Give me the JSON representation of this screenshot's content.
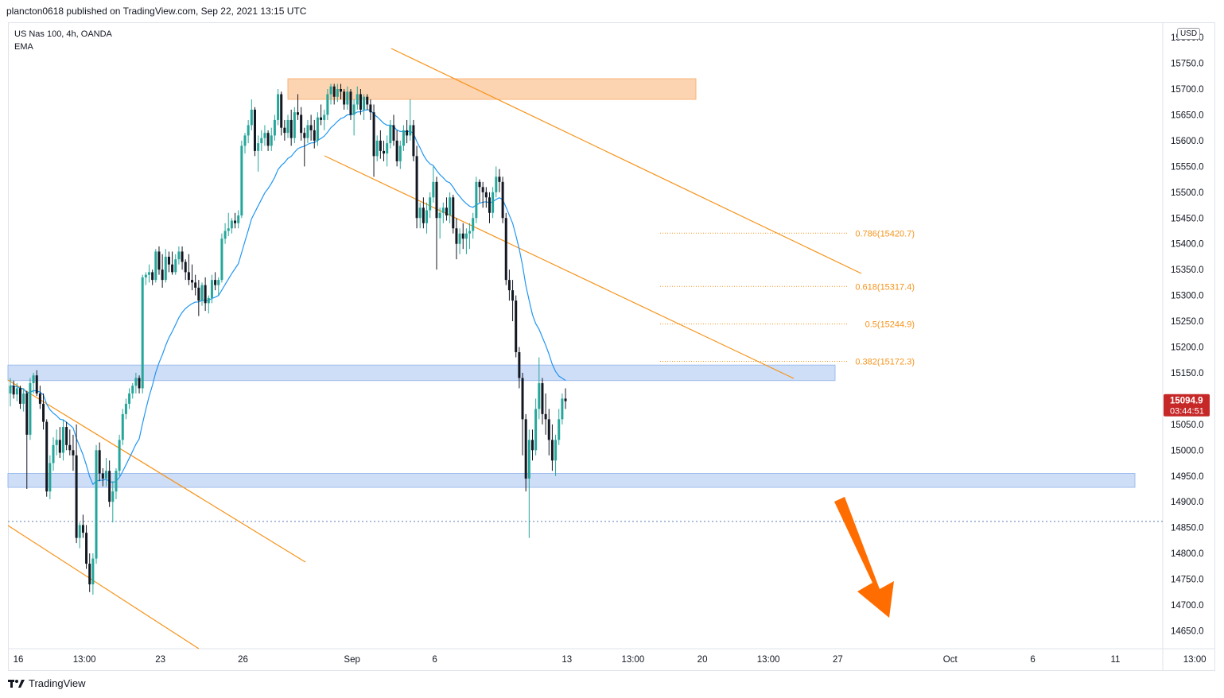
{
  "header": {
    "published_by": "plancton0618 published on TradingView.com, Sep 22, 2021 13:15 UTC"
  },
  "symbol": {
    "name": "US Nas 100, 4h, OANDA",
    "indicator": "EMA"
  },
  "currency_badge": "USD",
  "footer": {
    "logo_text": "TradingView",
    "logo_icon": "tradingview-logo-icon"
  },
  "price_tag": {
    "price": "15094.9",
    "countdown": "03:44:51",
    "color": "#c62828"
  },
  "colors": {
    "up": "#26a69a",
    "down": "#131722",
    "wick": "#131722",
    "ema": "#2196f3",
    "channel": "#f7931a",
    "supply_zone": "#fbcda3",
    "demand_zone": "#c5d8f6"
  },
  "chart_data": {
    "type": "candlestick",
    "symbol": "US Nas 100, 4h, OANDA",
    "y_range": [
      14600,
      15800
    ],
    "y_ticks": [
      14650,
      14700,
      14750,
      14800,
      14850,
      14900,
      14950,
      15000,
      15050,
      15100,
      15150,
      15200,
      15250,
      15300,
      15350,
      15400,
      15450,
      15500,
      15550,
      15600,
      15650,
      15700,
      15750
    ],
    "y_tick_labels": [
      "14650.0",
      "14700.0",
      "14750.0",
      "14800.0",
      "14850.0",
      "14900.0",
      "14950.0",
      "15000.0",
      "15050.0",
      "15100.0",
      "15150.0",
      "15200.0",
      "15250.0",
      "15300.0",
      "15350.0",
      "15400.0",
      "15450.0",
      "15500.0",
      "15550.0",
      "15600.0",
      "15650.0",
      "15700.0",
      "15750.0"
    ],
    "top_tick_label": "15800.0",
    "x_ticks": [
      "16",
      "13:00",
      "23",
      "26",
      "Sep",
      "6",
      "13",
      "13:00",
      "20",
      "13:00",
      "27",
      "Oct",
      "6",
      "11",
      "13:00"
    ],
    "x_tick_index": [
      0,
      20,
      43,
      68,
      101,
      126,
      166,
      186,
      207,
      227,
      248,
      282,
      307,
      332,
      356
    ],
    "last_price": 15094.9,
    "countdown": "03:44:51",
    "candles": [
      [
        15110,
        15140,
        15085,
        15125
      ],
      [
        15125,
        15135,
        15100,
        15108
      ],
      [
        15108,
        15130,
        15095,
        15120
      ],
      [
        15120,
        15125,
        15080,
        15090
      ],
      [
        15090,
        15120,
        15075,
        15110
      ],
      [
        15110,
        15115,
        14925,
        15030
      ],
      [
        15030,
        15140,
        15020,
        15130
      ],
      [
        15130,
        15150,
        15110,
        15145
      ],
      [
        15145,
        15155,
        15105,
        15110
      ],
      [
        15110,
        15125,
        15080,
        15090
      ],
      [
        15090,
        15110,
        15040,
        15055
      ],
      [
        15055,
        15060,
        14910,
        14920
      ],
      [
        14920,
        14990,
        14905,
        14975
      ],
      [
        14975,
        15025,
        14960,
        15010
      ],
      [
        15010,
        15040,
        14990,
        15020
      ],
      [
        15020,
        15045,
        14985,
        14995
      ],
      [
        14995,
        15060,
        14980,
        15045
      ],
      [
        15045,
        15055,
        15000,
        15010
      ],
      [
        15010,
        15040,
        14990,
        15000
      ],
      [
        15000,
        15030,
        14960,
        14990
      ],
      [
        14990,
        15050,
        14820,
        14830
      ],
      [
        14830,
        14860,
        14810,
        14855
      ],
      [
        14855,
        14875,
        14830,
        14840
      ],
      [
        14840,
        14855,
        14770,
        14780
      ],
      [
        14780,
        14800,
        14725,
        14740
      ],
      [
        14740,
        14800,
        14720,
        14790
      ],
      [
        14790,
        15010,
        14780,
        15000
      ],
      [
        15000,
        15015,
        14940,
        14955
      ],
      [
        14955,
        14965,
        14930,
        14945
      ],
      [
        14945,
        14985,
        14930,
        14960
      ],
      [
        14960,
        14980,
        14890,
        14900
      ],
      [
        14900,
        14940,
        14860,
        14920
      ],
      [
        14920,
        14965,
        14905,
        14960
      ],
      [
        14960,
        15030,
        14950,
        15020
      ],
      [
        15020,
        15080,
        15010,
        15070
      ],
      [
        15070,
        15100,
        15060,
        15090
      ],
      [
        15090,
        15120,
        15080,
        15110
      ],
      [
        15110,
        15130,
        15100,
        15125
      ],
      [
        15125,
        15150,
        15110,
        15140
      ],
      [
        15140,
        15145,
        15110,
        15120
      ],
      [
        15120,
        15340,
        15110,
        15335
      ],
      [
        15335,
        15345,
        15320,
        15340
      ],
      [
        15340,
        15360,
        15325,
        15345
      ],
      [
        15345,
        15350,
        15320,
        15330
      ],
      [
        15330,
        15390,
        15325,
        15385
      ],
      [
        15385,
        15395,
        15340,
        15350
      ],
      [
        15350,
        15380,
        15315,
        15330
      ],
      [
        15330,
        15390,
        15325,
        15375
      ],
      [
        15375,
        15385,
        15345,
        15360
      ],
      [
        15360,
        15385,
        15340,
        15345
      ],
      [
        15345,
        15380,
        15340,
        15370
      ],
      [
        15370,
        15395,
        15360,
        15385
      ],
      [
        15385,
        15395,
        15350,
        15365
      ],
      [
        15365,
        15370,
        15330,
        15345
      ],
      [
        15345,
        15380,
        15320,
        15330
      ],
      [
        15330,
        15360,
        15310,
        15325
      ],
      [
        15325,
        15340,
        15300,
        15315
      ],
      [
        15315,
        15330,
        15260,
        15290
      ],
      [
        15290,
        15325,
        15280,
        15320
      ],
      [
        15320,
        15335,
        15270,
        15285
      ],
      [
        15285,
        15300,
        15265,
        15295
      ],
      [
        15295,
        15340,
        15285,
        15330
      ],
      [
        15330,
        15345,
        15310,
        15320
      ],
      [
        15320,
        15335,
        15300,
        15330
      ],
      [
        15330,
        15420,
        15325,
        15410
      ],
      [
        15410,
        15440,
        15400,
        15425
      ],
      [
        15425,
        15460,
        15415,
        15430
      ],
      [
        15430,
        15450,
        15420,
        15445
      ],
      [
        15445,
        15460,
        15430,
        15440
      ],
      [
        15440,
        15465,
        15430,
        15455
      ],
      [
        15455,
        15600,
        15450,
        15590
      ],
      [
        15590,
        15615,
        15575,
        15610
      ],
      [
        15610,
        15640,
        15595,
        15630
      ],
      [
        15630,
        15680,
        15620,
        15660
      ],
      [
        15660,
        15665,
        15570,
        15580
      ],
      [
        15580,
        15610,
        15540,
        15595
      ],
      [
        15595,
        15620,
        15580,
        15605
      ],
      [
        15605,
        15630,
        15590,
        15615
      ],
      [
        15615,
        15620,
        15580,
        15590
      ],
      [
        15590,
        15625,
        15580,
        15610
      ],
      [
        15610,
        15650,
        15600,
        15640
      ],
      [
        15640,
        15700,
        15630,
        15690
      ],
      [
        15690,
        15695,
        15610,
        15625
      ],
      [
        15625,
        15640,
        15600,
        15615
      ],
      [
        15615,
        15650,
        15605,
        15640
      ],
      [
        15640,
        15660,
        15590,
        15605
      ],
      [
        15605,
        15665,
        15595,
        15655
      ],
      [
        15655,
        15690,
        15640,
        15650
      ],
      [
        15650,
        15665,
        15600,
        15615
      ],
      [
        15615,
        15625,
        15550,
        15605
      ],
      [
        15605,
        15640,
        15595,
        15630
      ],
      [
        15630,
        15650,
        15600,
        15620
      ],
      [
        15620,
        15640,
        15585,
        15600
      ],
      [
        15600,
        15655,
        15590,
        15645
      ],
      [
        15645,
        15670,
        15630,
        15640
      ],
      [
        15640,
        15660,
        15620,
        15650
      ],
      [
        15650,
        15700,
        15640,
        15690
      ],
      [
        15690,
        15710,
        15670,
        15705
      ],
      [
        15705,
        15710,
        15670,
        15685
      ],
      [
        15685,
        15710,
        15675,
        15700
      ],
      [
        15700,
        15710,
        15680,
        15695
      ],
      [
        15695,
        15700,
        15660,
        15670
      ],
      [
        15670,
        15705,
        15660,
        15695
      ],
      [
        15695,
        15700,
        15640,
        15650
      ],
      [
        15650,
        15680,
        15610,
        15670
      ],
      [
        15670,
        15705,
        15660,
        15690
      ],
      [
        15690,
        15700,
        15650,
        15660
      ],
      [
        15660,
        15690,
        15640,
        15685
      ],
      [
        15685,
        15690,
        15660,
        15670
      ],
      [
        15670,
        15680,
        15640,
        15655
      ],
      [
        15655,
        15670,
        15530,
        15570
      ],
      [
        15570,
        15610,
        15560,
        15600
      ],
      [
        15600,
        15620,
        15565,
        15580
      ],
      [
        15580,
        15600,
        15560,
        15575
      ],
      [
        15575,
        15610,
        15550,
        15595
      ],
      [
        15595,
        15640,
        15585,
        15630
      ],
      [
        15630,
        15650,
        15590,
        15600
      ],
      [
        15600,
        15620,
        15550,
        15560
      ],
      [
        15560,
        15600,
        15545,
        15590
      ],
      [
        15590,
        15630,
        15580,
        15620
      ],
      [
        15620,
        15640,
        15595,
        15610
      ],
      [
        15610,
        15680,
        15600,
        15630
      ],
      [
        15630,
        15640,
        15560,
        15570
      ],
      [
        15570,
        15590,
        15430,
        15450
      ],
      [
        15450,
        15480,
        15430,
        15470
      ],
      [
        15470,
        15490,
        15430,
        15440
      ],
      [
        15440,
        15480,
        15420,
        15465
      ],
      [
        15465,
        15500,
        15450,
        15490
      ],
      [
        15490,
        15550,
        15480,
        15520
      ],
      [
        15520,
        15530,
        15350,
        15450
      ],
      [
        15450,
        15470,
        15410,
        15460
      ],
      [
        15460,
        15480,
        15440,
        15470
      ],
      [
        15470,
        15490,
        15445,
        15455
      ],
      [
        15455,
        15500,
        15440,
        15490
      ],
      [
        15490,
        15495,
        15420,
        15430
      ],
      [
        15430,
        15450,
        15370,
        15400
      ],
      [
        15400,
        15430,
        15380,
        15420
      ],
      [
        15420,
        15440,
        15390,
        15410
      ],
      [
        15410,
        15430,
        15380,
        15420
      ],
      [
        15420,
        15440,
        15390,
        15425
      ],
      [
        15425,
        15460,
        15410,
        15450
      ],
      [
        15450,
        15530,
        15440,
        15520
      ],
      [
        15520,
        15525,
        15480,
        15510
      ],
      [
        15510,
        15520,
        15470,
        15500
      ],
      [
        15500,
        15510,
        15470,
        15490
      ],
      [
        15490,
        15500,
        15440,
        15460
      ],
      [
        15460,
        15510,
        15450,
        15500
      ],
      [
        15500,
        15550,
        15490,
        15530
      ],
      [
        15530,
        15545,
        15500,
        15520
      ],
      [
        15520,
        15530,
        15440,
        15450
      ],
      [
        15450,
        15460,
        15320,
        15330
      ],
      [
        15330,
        15350,
        15290,
        15310
      ],
      [
        15310,
        15330,
        15250,
        15290
      ],
      [
        15290,
        15300,
        15180,
        15190
      ],
      [
        15190,
        15200,
        15120,
        15140
      ],
      [
        15140,
        15150,
        14990,
        15060
      ],
      [
        15060,
        15070,
        14920,
        14945
      ],
      [
        14945,
        15040,
        14830,
        15020
      ],
      [
        15020,
        15040,
        14980,
        15000
      ],
      [
        15000,
        15100,
        14990,
        15080
      ],
      [
        15080,
        15180,
        15060,
        15130
      ],
      [
        15130,
        15140,
        15050,
        15070
      ],
      [
        15070,
        15110,
        15030,
        15060
      ],
      [
        15060,
        15080,
        14990,
        15020
      ],
      [
        15020,
        15050,
        14960,
        14980
      ],
      [
        14980,
        15030,
        14950,
        15020
      ],
      [
        15020,
        15080,
        15010,
        15060
      ],
      [
        15060,
        15110,
        15050,
        15100
      ],
      [
        15100,
        15120,
        15080,
        15095
      ]
    ],
    "ema_period_label": "EMA",
    "zones": [
      {
        "name": "supply-zone",
        "from": 15680,
        "to": 15720,
        "start_index": 70,
        "end_index": 178
      },
      {
        "name": "resistance-zone",
        "from": 15135,
        "to": 15165,
        "start_index": 0,
        "end_index": 212
      },
      {
        "name": "support-zone",
        "from": 14928,
        "to": 14955,
        "start_index": 0,
        "end_index": 362
      }
    ],
    "fib_levels": [
      {
        "ratio": "0.786",
        "price": 15420.7,
        "label": "0.786(15420.7)"
      },
      {
        "ratio": "0.618",
        "price": 15317.4,
        "label": "0.618(15317.4)"
      },
      {
        "ratio": "0.5",
        "price": 15244.9,
        "label": "0.5(15244.9)"
      },
      {
        "ratio": "0.382",
        "price": 15172.3,
        "label": "0.382(15172.3)"
      }
    ],
    "dotted_level": 14862,
    "grid": false
  }
}
